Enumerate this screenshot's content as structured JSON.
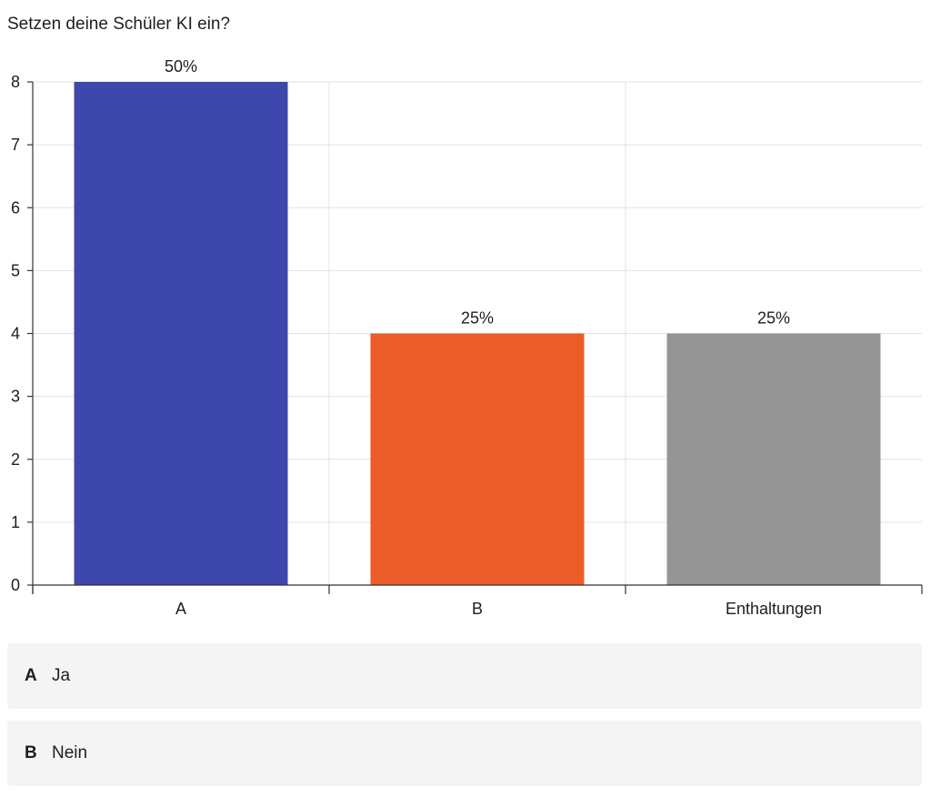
{
  "question": "Setzen deine Schüler KI ein?",
  "options": [
    {
      "key": "A",
      "text": "Ja"
    },
    {
      "key": "B",
      "text": "Nein"
    }
  ],
  "chart_data": {
    "type": "bar",
    "title": "",
    "xlabel": "",
    "ylabel": "",
    "categories": [
      "A",
      "B",
      "Enthaltungen"
    ],
    "values": [
      8,
      4,
      4
    ],
    "data_labels": [
      "50%",
      "25%",
      "25%"
    ],
    "colors": [
      "#3e47ab",
      "#ec5c28",
      "#959595"
    ],
    "ylim": [
      0,
      8
    ],
    "yticks": [
      0,
      1,
      2,
      3,
      4,
      5,
      6,
      7,
      8
    ],
    "grid": true,
    "legend": "none"
  }
}
